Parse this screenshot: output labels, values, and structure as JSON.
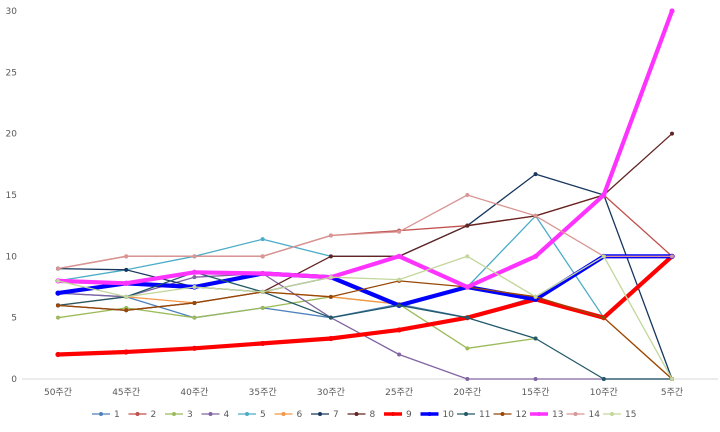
{
  "chart_data": {
    "type": "line",
    "title": "",
    "xlabel": "",
    "ylabel": "",
    "ylim": [
      0,
      30
    ],
    "yticks": [
      0,
      5,
      10,
      15,
      20,
      25,
      30
    ],
    "grid": false,
    "legend_position": "bottom",
    "categories": [
      "50주간",
      "45주간",
      "40주간",
      "35주간",
      "30주간",
      "25주간",
      "20주간",
      "15주간",
      "10주간",
      "5주간"
    ],
    "series": [
      {
        "name": "1",
        "color": "#4f81bd",
        "width": 1.3,
        "values": [
          7,
          6.7,
          5,
          5.8,
          5,
          6.1,
          5,
          6.7,
          10,
          10
        ]
      },
      {
        "name": "2",
        "color": "#c0504d",
        "width": 1.3,
        "values": [
          9,
          10,
          10,
          10,
          11.7,
          12.1,
          12.5,
          13.3,
          15,
          10
        ]
      },
      {
        "name": "3",
        "color": "#9bbb59",
        "width": 1.3,
        "values": [
          5,
          5.8,
          5,
          5.8,
          6.7,
          6.1,
          2.5,
          3.3,
          null,
          null
        ]
      },
      {
        "name": "4",
        "color": "#8064a2",
        "width": 1.3,
        "values": [
          7,
          6.7,
          8.3,
          8.6,
          5,
          2,
          0,
          0,
          0,
          0
        ]
      },
      {
        "name": "5",
        "color": "#4bacc6",
        "width": 1.3,
        "values": [
          8,
          8.9,
          10,
          11.4,
          10,
          10,
          7.5,
          13.3,
          5,
          null
        ]
      },
      {
        "name": "6",
        "color": "#f79646",
        "width": 1.3,
        "values": [
          6,
          6.7,
          6.2,
          7.1,
          6.7,
          6.1,
          7.5,
          6.7,
          5,
          0
        ]
      },
      {
        "name": "7",
        "color": "#17375e",
        "width": 1.3,
        "values": [
          9,
          8.9,
          7.5,
          7.1,
          8.3,
          10,
          12.5,
          16.7,
          15,
          0
        ]
      },
      {
        "name": "8",
        "color": "#632523",
        "width": 1.3,
        "values": [
          6,
          5.6,
          6.2,
          7.1,
          10,
          10,
          12.5,
          13.3,
          15,
          20
        ]
      },
      {
        "name": "9",
        "color": "#ff0000",
        "width": 4.2,
        "values": [
          2,
          2.2,
          2.5,
          2.9,
          3.3,
          4,
          5,
          6.5,
          5,
          10
        ]
      },
      {
        "name": "10",
        "color": "#0000ff",
        "width": 4.2,
        "values": [
          7,
          7.8,
          7.5,
          8.6,
          8.3,
          6,
          7.5,
          6.5,
          10,
          10
        ]
      },
      {
        "name": "11",
        "color": "#215968",
        "width": 1.3,
        "values": [
          6,
          6.7,
          8.7,
          7.1,
          5,
          6,
          5,
          3.3,
          0,
          0
        ]
      },
      {
        "name": "12",
        "color": "#984807",
        "width": 1.3,
        "values": [
          6,
          5.6,
          6.2,
          7.1,
          6.7,
          8,
          7.5,
          6.7,
          5,
          0
        ]
      },
      {
        "name": "13",
        "color": "#ff33ff",
        "width": 4.2,
        "values": [
          8,
          7.8,
          8.7,
          8.6,
          8.3,
          10,
          7.5,
          10,
          15,
          30
        ]
      },
      {
        "name": "14",
        "color": "#d99694",
        "width": 1.3,
        "values": [
          9,
          10,
          10,
          10,
          11.7,
          12,
          15,
          13.3,
          10,
          10
        ]
      },
      {
        "name": "15",
        "color": "#c3d69b",
        "width": 1.3,
        "values": [
          8,
          6.7,
          7.5,
          7.1,
          8.3,
          8.1,
          10,
          6.7,
          10,
          0
        ]
      }
    ]
  }
}
